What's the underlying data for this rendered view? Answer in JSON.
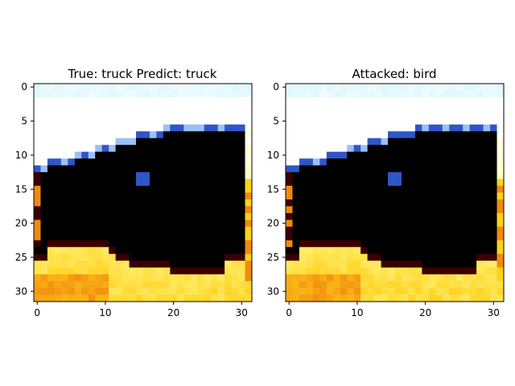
{
  "chart_data": [
    {
      "type": "heatmap",
      "title": "True: truck  Predict: truck",
      "image_size": [
        32,
        32
      ],
      "xticks": [
        0,
        10,
        20,
        30
      ],
      "yticks": [
        0,
        5,
        10,
        15,
        20,
        25,
        30
      ],
      "xlim": [
        -0.5,
        31.5
      ],
      "ylim": [
        31.5,
        -0.5
      ],
      "colors": {
        "sky": "#ffffff",
        "sky_tint": "#dff8fc",
        "vehicle": "#000000",
        "highlight_blue": "#2f56c8",
        "light_blue": "#9cc0f5",
        "dark_red": "#3a0000",
        "orange": "#f08a10",
        "yellow": "#fff27a",
        "bright_yellow": "#ffd11a"
      }
    },
    {
      "type": "heatmap",
      "title": "Attacked: bird",
      "image_size": [
        32,
        32
      ],
      "xticks": [
        0,
        10,
        20,
        30
      ],
      "yticks": [
        0,
        5,
        10,
        15,
        20,
        25,
        30
      ],
      "xlim": [
        -0.5,
        31.5
      ],
      "ylim": [
        31.5,
        -0.5
      ],
      "colors": {
        "sky": "#ffffff",
        "sky_tint": "#dff8fc",
        "vehicle": "#000000",
        "highlight_blue": "#2f56c8",
        "light_blue": "#9cc0f5",
        "dark_red": "#3a0000",
        "orange": "#f08a10",
        "yellow": "#fff27a",
        "bright_yellow": "#ffd11a"
      }
    }
  ]
}
